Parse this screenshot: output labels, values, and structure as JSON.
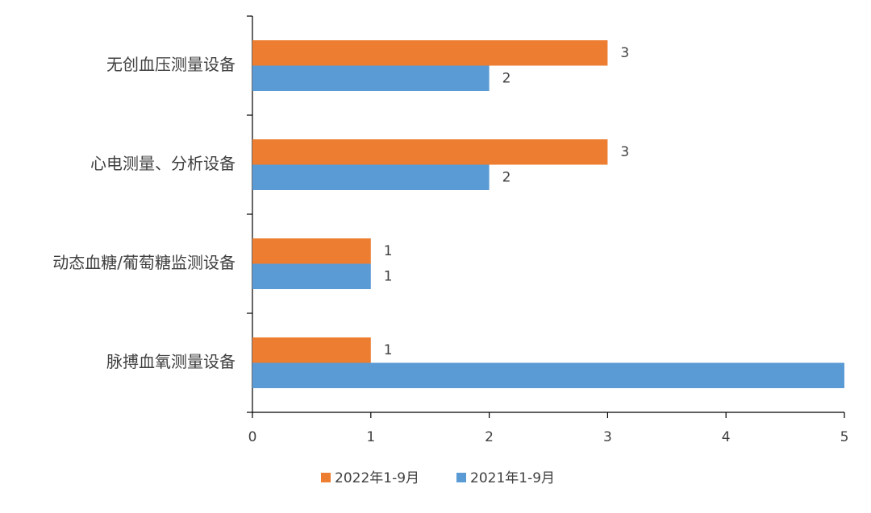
{
  "chart_data": {
    "type": "hbar",
    "categories": [
      "无创血压测量设备",
      "心电测量、分析设备",
      "动态血糖/葡萄糖监测设备",
      "脉搏血氧测量设备"
    ],
    "series": [
      {
        "name": "2022年1-9月",
        "color": "#ed7d31",
        "values": [
          3,
          3,
          1,
          1
        ]
      },
      {
        "name": "2021年1-9月",
        "color": "#5b9bd5",
        "values": [
          2,
          2,
          1,
          5
        ]
      }
    ],
    "xlim": [
      0,
      5
    ],
    "xticks": [
      0,
      1,
      2,
      3,
      4,
      5
    ],
    "legend": "bottom"
  }
}
